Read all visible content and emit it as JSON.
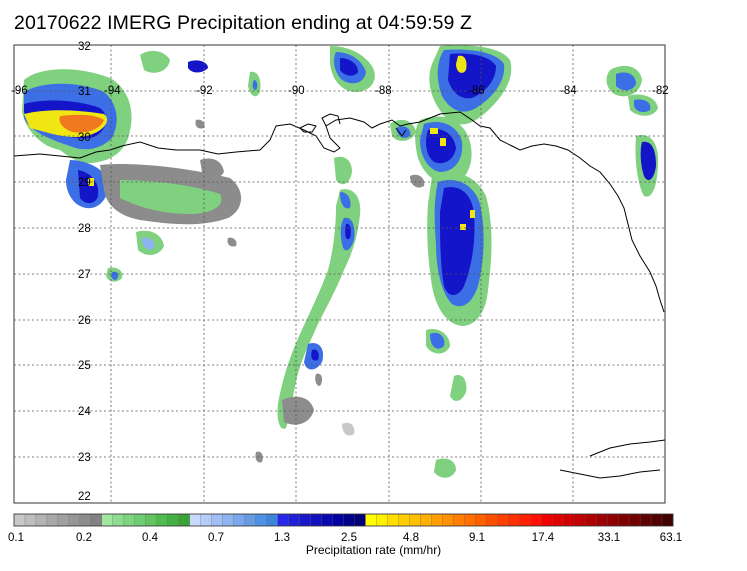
{
  "title": "20170622 IMERG Precipitation ending at 04:59:59 Z",
  "map": {
    "longitude_labels": [
      "-96",
      "-94",
      "-92",
      "-90",
      "-88",
      "-86",
      "-84",
      "-82"
    ],
    "latitude_labels": [
      "32",
      "31",
      "30",
      "29",
      "28",
      "27",
      "26",
      "25",
      "24",
      "23",
      "22"
    ],
    "colors": {
      "gray_light": "#c8c8c8",
      "gray_dark": "#8c8c8c",
      "green": "#7fd07f",
      "blue_light": "#8cb4f0",
      "blue": "#3c6ee6",
      "navy": "#1414c8",
      "yellow": "#f0e614",
      "orange": "#f0781e",
      "coastline": "#000000",
      "grid": "#555555"
    }
  },
  "colorbar": {
    "title": "Precipitation rate (mm/hr)",
    "tick_labels": [
      "0.1",
      "0.2",
      "0.4",
      "0.7",
      "1.3",
      "2.5",
      "4.8",
      "9.1",
      "17.4",
      "33.1",
      "63.1"
    ],
    "swatches": [
      "#c8c8c8",
      "#bebebe",
      "#b4b4b4",
      "#aaaaaa",
      "#a0a0a0",
      "#969696",
      "#8c8c8c",
      "#828282",
      "#a0e6a0",
      "#90dc90",
      "#80d480",
      "#70cc70",
      "#60c460",
      "#50bc50",
      "#44b044",
      "#38a438",
      "#c8d8ff",
      "#b4ccfa",
      "#a0c0f5",
      "#8cb4f0",
      "#78a8eb",
      "#649ce6",
      "#5090e1",
      "#3c84dc",
      "#2828e6",
      "#2020d8",
      "#1818ca",
      "#1010bc",
      "#0808ae",
      "#0000a0",
      "#00008c",
      "#000078",
      "#ffff00",
      "#fff000",
      "#ffe000",
      "#ffd000",
      "#ffc000",
      "#ffb000",
      "#ffa000",
      "#ff9000",
      "#ff8000",
      "#ff7000",
      "#ff6000",
      "#ff5000",
      "#ff4000",
      "#ff3000",
      "#ff2000",
      "#ff1000",
      "#f00000",
      "#e00000",
      "#d00000",
      "#c00000",
      "#b00000",
      "#a00000",
      "#900000",
      "#800000",
      "#700000",
      "#600000",
      "#500000",
      "#400000"
    ]
  }
}
